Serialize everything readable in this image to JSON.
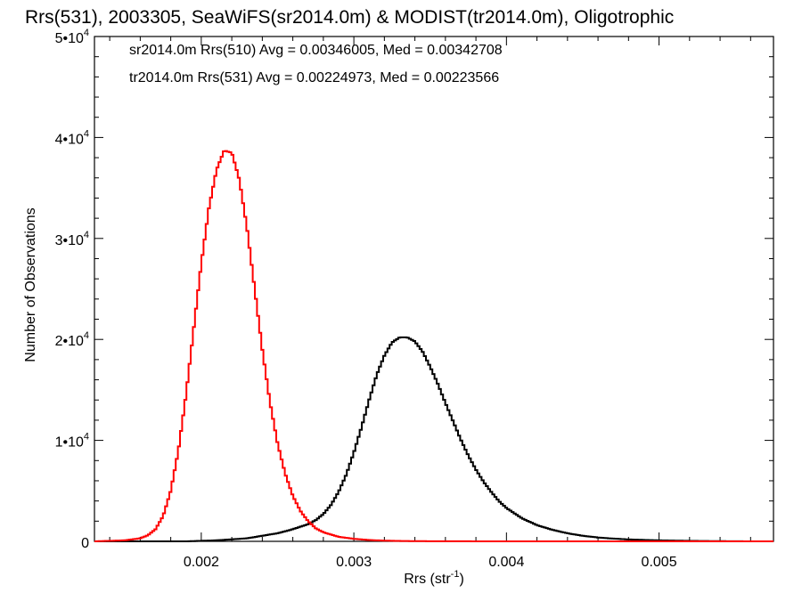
{
  "chart_data": {
    "type": "line",
    "title": "Rrs(531), 2003305, SeaWiFS(sr2014.0m) & MODIST(tr2014.0m), Oligotrophic",
    "xlabel": "Rrs (str",
    "xlabel_sup": "-1",
    "xlabel_end": ")",
    "ylabel": "Number of Observations",
    "xlim": [
      0.0013,
      0.00575
    ],
    "ylim": [
      0,
      50000
    ],
    "grid": false,
    "legend_position": "top-left",
    "x_ticks": [
      {
        "value": 0.002,
        "label": "0.002"
      },
      {
        "value": 0.003,
        "label": "0.003"
      },
      {
        "value": 0.004,
        "label": "0.004"
      },
      {
        "value": 0.005,
        "label": "0.005"
      }
    ],
    "y_ticks": [
      {
        "value": 0,
        "mant": "0",
        "exp": ""
      },
      {
        "value": 10000,
        "mant": "1•10",
        "exp": "4"
      },
      {
        "value": 20000,
        "mant": "2•10",
        "exp": "4"
      },
      {
        "value": 30000,
        "mant": "3•10",
        "exp": "4"
      },
      {
        "value": 40000,
        "mant": "4•10",
        "exp": "4"
      },
      {
        "value": 50000,
        "mant": "5•10",
        "exp": "4"
      }
    ],
    "legend": [
      {
        "text": "sr2014.0m Rrs(510) Avg = 0.00346005, Med = 0.00342708",
        "color": "#000000"
      },
      {
        "text": "tr2014.0m Rrs(531) Avg = 0.00224973, Med = 0.00223566",
        "color": "#ff0000"
      }
    ],
    "series": [
      {
        "color": "#000000",
        "x": [
          0.0013,
          0.0015,
          0.0017,
          0.0019,
          0.0021,
          0.0023,
          0.0025,
          0.0026,
          0.0027,
          0.00275,
          0.0028,
          0.00285,
          0.0029,
          0.00295,
          0.003,
          0.00305,
          0.0031,
          0.00315,
          0.0032,
          0.00325,
          0.0033,
          0.00335,
          0.0034,
          0.00345,
          0.0035,
          0.00355,
          0.0036,
          0.00365,
          0.0037,
          0.00375,
          0.0038,
          0.00385,
          0.0039,
          0.00395,
          0.004,
          0.0041,
          0.0042,
          0.0043,
          0.0044,
          0.0045,
          0.0046,
          0.0047,
          0.0048,
          0.0049,
          0.005,
          0.0051,
          0.0052,
          0.0053,
          0.0054,
          0.0055,
          0.0056,
          0.00575
        ],
        "y": [
          0,
          0,
          0,
          0,
          100,
          300,
          800,
          1200,
          1700,
          2100,
          2700,
          3600,
          4900,
          6600,
          8800,
          11300,
          14000,
          16500,
          18400,
          19700,
          20200,
          20200,
          19800,
          18800,
          17300,
          15600,
          13700,
          11900,
          10100,
          8500,
          7100,
          5900,
          4900,
          4000,
          3300,
          2300,
          1600,
          1150,
          800,
          550,
          380,
          270,
          190,
          140,
          100,
          70,
          50,
          30,
          20,
          10,
          0,
          0
        ]
      },
      {
        "color": "#ff0000",
        "x": [
          0.0013,
          0.0014,
          0.0015,
          0.0016,
          0.00165,
          0.0017,
          0.00175,
          0.0018,
          0.00185,
          0.0019,
          0.00195,
          0.002,
          0.00205,
          0.0021,
          0.00215,
          0.0022,
          0.00225,
          0.0023,
          0.00235,
          0.0024,
          0.00245,
          0.0025,
          0.00255,
          0.0026,
          0.00265,
          0.0027,
          0.00275,
          0.0028,
          0.0029,
          0.003,
          0.0031,
          0.0032,
          0.0033,
          0.0034,
          0.0036,
          0.004,
          0.0045,
          0.005,
          0.00575
        ],
        "y": [
          0,
          50,
          100,
          300,
          600,
          1200,
          2500,
          5000,
          9000,
          14500,
          21000,
          27500,
          33000,
          36800,
          38700,
          38500,
          35800,
          31000,
          25000,
          19000,
          13800,
          9700,
          6700,
          4500,
          3000,
          2000,
          1300,
          900,
          450,
          250,
          130,
          70,
          40,
          20,
          10,
          0,
          0,
          0,
          0
        ]
      }
    ]
  }
}
